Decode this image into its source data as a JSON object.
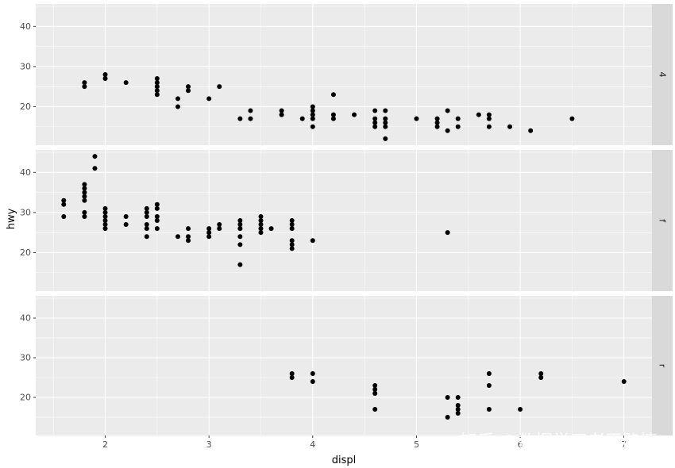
{
  "chart_data": {
    "type": "scatter",
    "xlabel": "displ",
    "ylabel": "hwy",
    "x_ticks": [
      2,
      3,
      4,
      5,
      6,
      7
    ],
    "y_ticks": [
      20,
      30,
      40
    ],
    "xlim": [
      1.33,
      7.27
    ],
    "ylim": [
      10.4,
      45.6
    ],
    "grid": true,
    "facets": [
      {
        "label": "4",
        "points": [
          [
            1.8,
            26
          ],
          [
            1.8,
            25
          ],
          [
            2.0,
            28
          ],
          [
            2.0,
            27
          ],
          [
            2.2,
            26
          ],
          [
            2.5,
            27
          ],
          [
            2.5,
            26
          ],
          [
            2.5,
            25
          ],
          [
            2.5,
            24
          ],
          [
            2.5,
            23
          ],
          [
            2.7,
            22
          ],
          [
            2.7,
            20
          ],
          [
            2.8,
            25
          ],
          [
            2.8,
            24
          ],
          [
            3.0,
            22
          ],
          [
            3.1,
            25
          ],
          [
            3.3,
            17
          ],
          [
            3.4,
            19
          ],
          [
            3.4,
            17
          ],
          [
            3.7,
            19
          ],
          [
            3.7,
            18
          ],
          [
            3.9,
            17
          ],
          [
            4.0,
            20
          ],
          [
            4.0,
            19
          ],
          [
            4.0,
            18
          ],
          [
            4.0,
            17
          ],
          [
            4.0,
            15
          ],
          [
            4.2,
            23
          ],
          [
            4.2,
            18
          ],
          [
            4.2,
            17
          ],
          [
            4.4,
            18
          ],
          [
            4.6,
            19
          ],
          [
            4.6,
            17
          ],
          [
            4.6,
            16
          ],
          [
            4.6,
            15
          ],
          [
            4.7,
            19
          ],
          [
            4.7,
            17
          ],
          [
            4.7,
            16
          ],
          [
            4.7,
            15
          ],
          [
            4.7,
            12
          ],
          [
            5.0,
            17
          ],
          [
            5.2,
            17
          ],
          [
            5.2,
            16
          ],
          [
            5.2,
            15
          ],
          [
            5.3,
            19
          ],
          [
            5.3,
            14
          ],
          [
            5.4,
            17
          ],
          [
            5.4,
            15
          ],
          [
            5.6,
            18
          ],
          [
            5.7,
            18
          ],
          [
            5.7,
            17
          ],
          [
            5.7,
            15
          ],
          [
            5.9,
            15
          ],
          [
            6.1,
            14
          ],
          [
            6.5,
            17
          ]
        ]
      },
      {
        "label": "f",
        "points": [
          [
            1.6,
            33
          ],
          [
            1.6,
            32
          ],
          [
            1.6,
            29
          ],
          [
            1.8,
            37
          ],
          [
            1.8,
            36
          ],
          [
            1.8,
            35
          ],
          [
            1.8,
            34
          ],
          [
            1.8,
            33
          ],
          [
            1.8,
            30
          ],
          [
            1.8,
            29
          ],
          [
            1.9,
            44
          ],
          [
            1.9,
            41
          ],
          [
            2.0,
            31
          ],
          [
            2.0,
            30
          ],
          [
            2.0,
            29
          ],
          [
            2.0,
            28
          ],
          [
            2.0,
            27
          ],
          [
            2.0,
            26
          ],
          [
            2.2,
            29
          ],
          [
            2.2,
            27
          ],
          [
            2.4,
            31
          ],
          [
            2.4,
            30
          ],
          [
            2.4,
            29
          ],
          [
            2.4,
            27
          ],
          [
            2.4,
            26
          ],
          [
            2.4,
            24
          ],
          [
            2.5,
            32
          ],
          [
            2.5,
            31
          ],
          [
            2.5,
            29
          ],
          [
            2.5,
            28
          ],
          [
            2.5,
            26
          ],
          [
            2.7,
            24
          ],
          [
            2.8,
            26
          ],
          [
            2.8,
            24
          ],
          [
            2.8,
            23
          ],
          [
            3.0,
            26
          ],
          [
            3.0,
            25
          ],
          [
            3.0,
            24
          ],
          [
            3.1,
            27
          ],
          [
            3.1,
            26
          ],
          [
            3.3,
            28
          ],
          [
            3.3,
            27
          ],
          [
            3.3,
            26
          ],
          [
            3.3,
            24
          ],
          [
            3.3,
            22
          ],
          [
            3.3,
            17
          ],
          [
            3.5,
            29
          ],
          [
            3.5,
            28
          ],
          [
            3.5,
            27
          ],
          [
            3.5,
            26
          ],
          [
            3.5,
            25
          ],
          [
            3.6,
            26
          ],
          [
            3.8,
            28
          ],
          [
            3.8,
            27
          ],
          [
            3.8,
            26
          ],
          [
            3.8,
            23
          ],
          [
            3.8,
            22
          ],
          [
            3.8,
            21
          ],
          [
            4.0,
            23
          ],
          [
            5.3,
            25
          ]
        ]
      },
      {
        "label": "r",
        "points": [
          [
            3.8,
            26
          ],
          [
            3.8,
            25
          ],
          [
            4.0,
            26
          ],
          [
            4.0,
            24
          ],
          [
            4.6,
            23
          ],
          [
            4.6,
            22
          ],
          [
            4.6,
            21
          ],
          [
            4.6,
            17
          ],
          [
            5.3,
            20
          ],
          [
            5.3,
            15
          ],
          [
            5.4,
            20
          ],
          [
            5.4,
            18
          ],
          [
            5.4,
            17
          ],
          [
            5.4,
            16
          ],
          [
            5.7,
            26
          ],
          [
            5.7,
            23
          ],
          [
            5.7,
            17
          ],
          [
            6.0,
            17
          ],
          [
            6.2,
            26
          ],
          [
            6.2,
            25
          ],
          [
            7.0,
            24
          ]
        ]
      }
    ]
  },
  "watermark": "知乎 @数据学习者王路情"
}
